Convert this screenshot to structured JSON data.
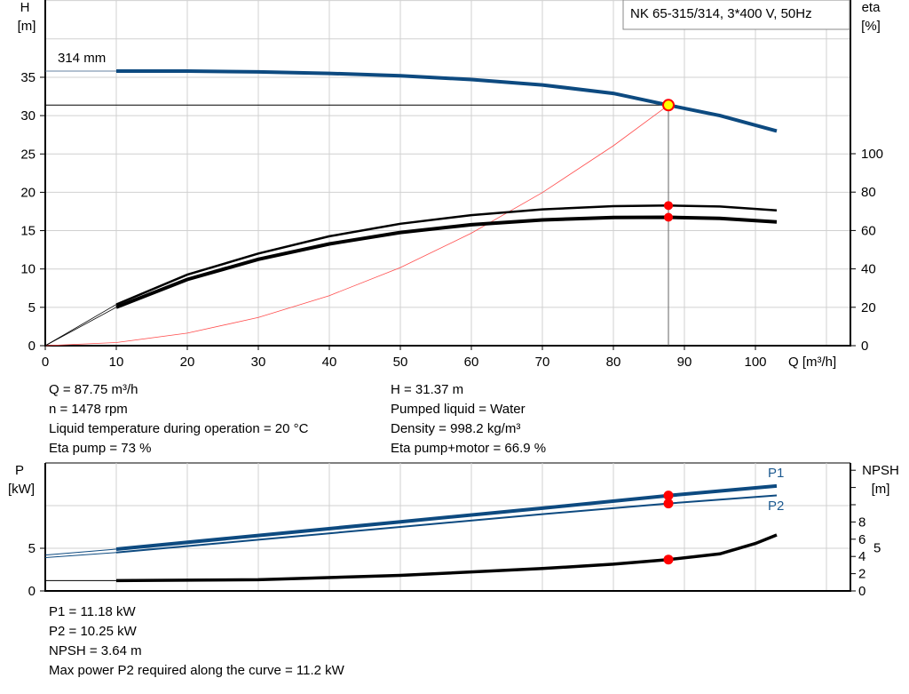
{
  "title": "NK 65-315/314, 3*400 V, 50Hz",
  "colors": {
    "head": "#0d4a80",
    "power": "#0d4a80",
    "eta": "#000000",
    "npsh": "#000000",
    "system": "#ff4d4d",
    "marker": "#ff0000",
    "duty_point": "#ffff00",
    "grid": "#d0d0d0"
  },
  "chart_data": [
    {
      "type": "line",
      "title": "NK 65-315/314, 3*400 V, 50Hz",
      "xlabel": "Q [m³/h]",
      "ylabel": "H [m]",
      "y2label": "eta [%]",
      "xlim": [
        0,
        115
      ],
      "ylim": [
        0,
        45
      ],
      "y2lim": [
        0,
        180
      ],
      "xticks": [
        0,
        10,
        20,
        30,
        40,
        50,
        60,
        70,
        80,
        90,
        100
      ],
      "yticks": [
        0,
        5,
        10,
        15,
        20,
        25,
        30,
        35
      ],
      "y2ticks": [
        0,
        20,
        40,
        60,
        80,
        100
      ],
      "grid": true,
      "impeller_label": "314 mm",
      "series": [
        {
          "key": "head",
          "axis": "left",
          "x": [
            10,
            20,
            30,
            40,
            50,
            60,
            70,
            80,
            87.75,
            95,
            103
          ],
          "y": [
            35.8,
            35.8,
            35.7,
            35.5,
            35.2,
            34.7,
            34.0,
            32.9,
            31.37,
            30.0,
            28.0
          ],
          "extension": [
            [
              0,
              35.8
            ],
            [
              10,
              35.8
            ]
          ]
        },
        {
          "key": "eta_pump",
          "axis": "right",
          "x": [
            10,
            20,
            30,
            40,
            50,
            60,
            70,
            80,
            87.75,
            95,
            103
          ],
          "y": [
            21.5,
            37,
            48,
            57,
            63.5,
            68,
            71,
            72.7,
            73,
            72.5,
            70.5
          ],
          "extension": [
            [
              0,
              0
            ],
            [
              10,
              21.5
            ]
          ]
        },
        {
          "key": "eta_pump_motor",
          "axis": "right",
          "x": [
            10,
            20,
            30,
            40,
            50,
            60,
            70,
            80,
            87.75,
            95,
            103
          ],
          "y": [
            20,
            34.5,
            45,
            53,
            59,
            63,
            65.5,
            66.8,
            66.9,
            66.3,
            64.5
          ],
          "extension": [
            [
              0,
              0
            ],
            [
              10,
              20
            ]
          ]
        },
        {
          "key": "system",
          "axis": "left",
          "x": [
            0,
            10,
            20,
            30,
            40,
            50,
            60,
            70,
            80,
            87.75
          ],
          "y": [
            0,
            0.41,
            1.63,
            3.67,
            6.52,
            10.18,
            14.67,
            19.96,
            26.07,
            31.37
          ]
        }
      ],
      "duty_point": {
        "q": 87.75,
        "h": 31.37,
        "eta_pump": 73,
        "eta_pump_motor": 66.9
      }
    },
    {
      "type": "line",
      "xlabel": "",
      "ylabel": "P [kW]",
      "y2label": "NPSH [m]",
      "xlim": [
        0,
        115
      ],
      "ylim": [
        0,
        15
      ],
      "y2lim": [
        0,
        14.8
      ],
      "yticks": [
        0,
        5
      ],
      "y2ticks": [
        "0",
        "2",
        "4",
        "5",
        "6",
        "8"
      ],
      "grid": true,
      "series": [
        {
          "name": "P1",
          "key": "p1",
          "axis": "left",
          "x": [
            10,
            30,
            50,
            70,
            87.75,
            103
          ],
          "y": [
            4.9,
            6.5,
            8.1,
            9.7,
            11.18,
            12.3
          ],
          "extension": [
            [
              0,
              4.2
            ],
            [
              10,
              4.9
            ]
          ]
        },
        {
          "name": "P2",
          "key": "p2",
          "axis": "left",
          "x": [
            10,
            30,
            50,
            70,
            87.75,
            103
          ],
          "y": [
            4.5,
            6.0,
            7.5,
            9.0,
            10.25,
            11.2
          ],
          "extension": [
            [
              0,
              3.9
            ],
            [
              10,
              4.5
            ]
          ]
        },
        {
          "key": "npsh",
          "axis": "right",
          "x": [
            10,
            30,
            50,
            70,
            80,
            87.75,
            95,
            100,
            103
          ],
          "y": [
            1.2,
            1.3,
            1.8,
            2.6,
            3.1,
            3.64,
            4.3,
            5.5,
            6.5
          ],
          "extension": [
            [
              0,
              1.2
            ],
            [
              10,
              1.2
            ]
          ]
        }
      ],
      "duty_point": {
        "p1": 11.18,
        "p2": 10.25,
        "npsh": 3.64
      }
    }
  ],
  "info_top_left": [
    "Q = 87.75 m³/h",
    "n = 1478 rpm",
    "Liquid temperature during operation = 20 °C",
    "Eta pump = 73 %"
  ],
  "info_top_right": [
    "H = 31.37 m",
    "Pumped liquid = Water",
    "Density = 998.2 kg/m³",
    "Eta pump+motor = 66.9 %"
  ],
  "info_bottom": [
    "P1 = 11.18 kW",
    "P2 = 10.25 kW",
    "NPSH = 3.64 m",
    "Max power P2 required along the curve = 11.2 kW"
  ],
  "labels": {
    "h": "H",
    "h_unit": "[m]",
    "eta": "eta",
    "eta_unit": "[%]",
    "q": "Q [m³/h]",
    "p": "P",
    "p_unit": "[kW]",
    "npsh": "NPSH",
    "npsh_unit": "[m]",
    "p1": "P1",
    "p2": "P2"
  }
}
